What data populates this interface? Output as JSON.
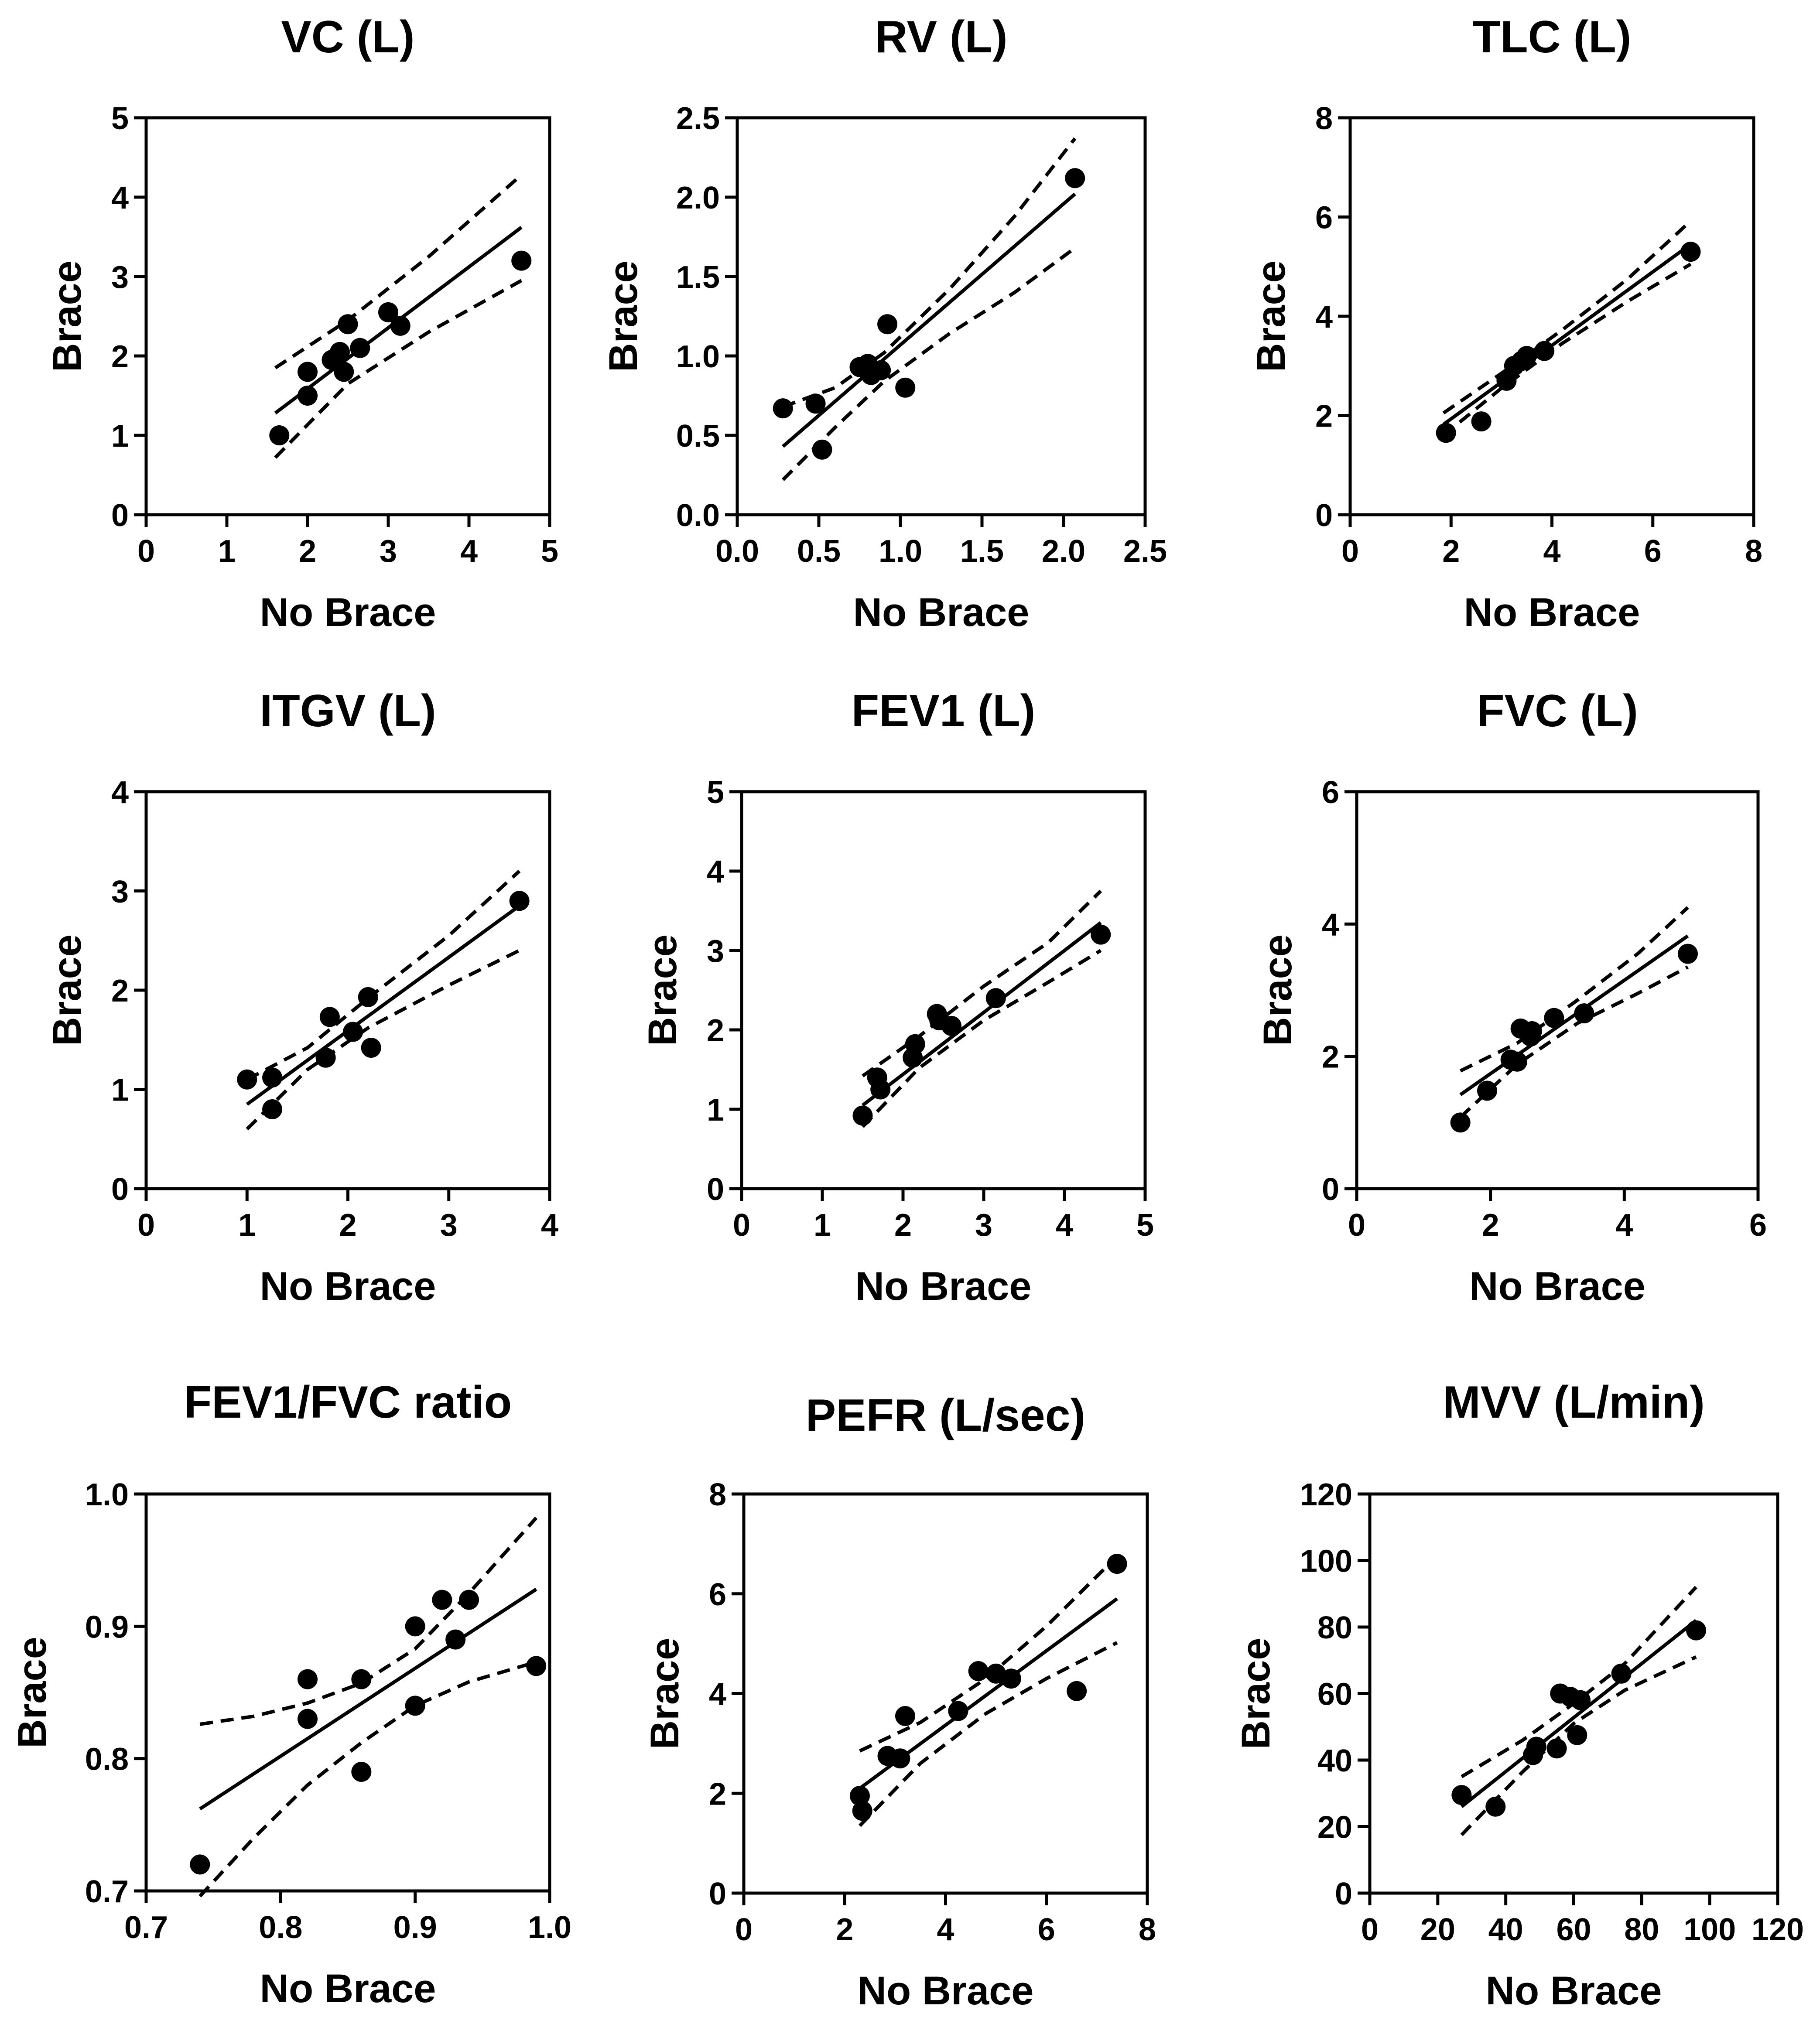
{
  "chart_data": [
    {
      "type": "scatter",
      "title": "VC (L)",
      "xlabel": "No Brace",
      "ylabel": "Brace",
      "xlim": [
        0,
        5
      ],
      "ylim": [
        0,
        5
      ],
      "xticks": [
        "0",
        "1",
        "2",
        "3",
        "4",
        "5"
      ],
      "yticks": [
        "0",
        "1",
        "2",
        "3",
        "4",
        "5"
      ],
      "points": [
        [
          1.65,
          1.0
        ],
        [
          2.0,
          1.5
        ],
        [
          2.0,
          1.8
        ],
        [
          2.3,
          1.95
        ],
        [
          2.4,
          2.05
        ],
        [
          2.45,
          1.8
        ],
        [
          2.5,
          2.4
        ],
        [
          2.65,
          2.1
        ],
        [
          3.0,
          2.55
        ],
        [
          3.15,
          2.38
        ],
        [
          4.65,
          3.2
        ]
      ],
      "fit_line": [
        [
          1.6,
          1.28
        ],
        [
          4.65,
          3.62
        ]
      ],
      "ci_upper": [
        [
          1.6,
          1.85
        ],
        [
          2.5,
          2.45
        ],
        [
          3.5,
          3.25
        ],
        [
          4.65,
          4.28
        ]
      ],
      "ci_lower": [
        [
          1.6,
          0.72
        ],
        [
          2.5,
          1.65
        ],
        [
          3.5,
          2.3
        ],
        [
          4.65,
          2.95
        ]
      ]
    },
    {
      "type": "scatter",
      "title": "RV (L)",
      "xlabel": "No Brace",
      "ylabel": "Brace",
      "xlim": [
        0,
        2.5
      ],
      "ylim": [
        0,
        2.5
      ],
      "xticks": [
        "0.0",
        "0.5",
        "1.0",
        "1.5",
        "2.0",
        "2.5"
      ],
      "yticks": [
        "0.0",
        "0.5",
        "1.0",
        "1.5",
        "2.0",
        "2.5"
      ],
      "points": [
        [
          0.28,
          0.67
        ],
        [
          0.48,
          0.7
        ],
        [
          0.52,
          0.41
        ],
        [
          0.75,
          0.93
        ],
        [
          0.8,
          0.95
        ],
        [
          0.82,
          0.88
        ],
        [
          0.88,
          0.91
        ],
        [
          0.92,
          1.2
        ],
        [
          1.03,
          0.8
        ],
        [
          2.07,
          2.12
        ]
      ],
      "fit_line": [
        [
          0.28,
          0.43
        ],
        [
          2.07,
          2.02
        ]
      ],
      "ci_upper": [
        [
          0.28,
          0.68
        ],
        [
          0.6,
          0.8
        ],
        [
          0.9,
          1.02
        ],
        [
          1.3,
          1.42
        ],
        [
          1.7,
          1.88
        ],
        [
          2.07,
          2.37
        ]
      ],
      "ci_lower": [
        [
          0.28,
          0.22
        ],
        [
          0.6,
          0.55
        ],
        [
          0.9,
          0.84
        ],
        [
          1.3,
          1.14
        ],
        [
          1.7,
          1.4
        ],
        [
          2.07,
          1.68
        ]
      ]
    },
    {
      "type": "scatter",
      "title": "TLC (L)",
      "xlabel": "No Brace",
      "ylabel": "Brace",
      "xlim": [
        0,
        8
      ],
      "ylim": [
        0,
        8
      ],
      "xticks": [
        "0",
        "2",
        "4",
        "6",
        "8"
      ],
      "yticks": [
        "0",
        "2",
        "4",
        "6",
        "8"
      ],
      "points": [
        [
          1.9,
          1.65
        ],
        [
          2.6,
          1.88
        ],
        [
          3.1,
          2.7
        ],
        [
          3.25,
          3.0
        ],
        [
          3.4,
          3.1
        ],
        [
          3.5,
          3.2
        ],
        [
          3.85,
          3.3
        ],
        [
          6.75,
          5.3
        ]
      ],
      "fit_line": [
        [
          1.85,
          1.82
        ],
        [
          6.75,
          5.45
        ]
      ],
      "ci_upper": [
        [
          1.85,
          2.05
        ],
        [
          3.0,
          2.85
        ],
        [
          4.2,
          3.72
        ],
        [
          5.5,
          4.75
        ],
        [
          6.75,
          5.92
        ]
      ],
      "ci_lower": [
        [
          1.85,
          1.6
        ],
        [
          3.0,
          2.55
        ],
        [
          4.2,
          3.45
        ],
        [
          5.5,
          4.3
        ],
        [
          6.75,
          5.05
        ]
      ]
    },
    {
      "type": "scatter",
      "title": "ITGV (L)",
      "xlabel": "No Brace",
      "ylabel": "Brace",
      "xlim": [
        0,
        4
      ],
      "ylim": [
        0,
        4
      ],
      "xticks": [
        "0",
        "1",
        "2",
        "3",
        "4"
      ],
      "yticks": [
        "0",
        "1",
        "2",
        "3",
        "4"
      ],
      "points": [
        [
          1.0,
          1.1
        ],
        [
          1.25,
          1.12
        ],
        [
          1.25,
          0.8
        ],
        [
          1.78,
          1.32
        ],
        [
          1.82,
          1.73
        ],
        [
          2.05,
          1.58
        ],
        [
          2.2,
          1.93
        ],
        [
          2.23,
          1.42
        ],
        [
          3.7,
          2.9
        ]
      ],
      "fit_line": [
        [
          1.0,
          0.85
        ],
        [
          3.7,
          2.85
        ]
      ],
      "ci_upper": [
        [
          1.0,
          1.1
        ],
        [
          1.6,
          1.42
        ],
        [
          2.2,
          1.92
        ],
        [
          3.0,
          2.55
        ],
        [
          3.7,
          3.2
        ]
      ],
      "ci_lower": [
        [
          1.0,
          0.6
        ],
        [
          1.6,
          1.2
        ],
        [
          2.2,
          1.62
        ],
        [
          3.0,
          2.05
        ],
        [
          3.7,
          2.4
        ]
      ]
    },
    {
      "type": "scatter",
      "title": "FEV1 (L)",
      "xlabel": "No Brace",
      "ylabel": "Brace",
      "xlim": [
        0,
        5
      ],
      "ylim": [
        0,
        5
      ],
      "xticks": [
        "0",
        "1",
        "2",
        "3",
        "4",
        "5"
      ],
      "yticks": [
        "0",
        "1",
        "2",
        "3",
        "4",
        "5"
      ],
      "points": [
        [
          1.5,
          0.92
        ],
        [
          1.68,
          1.4
        ],
        [
          1.72,
          1.25
        ],
        [
          2.12,
          1.65
        ],
        [
          2.15,
          1.82
        ],
        [
          2.42,
          2.2
        ],
        [
          2.45,
          2.12
        ],
        [
          2.6,
          2.05
        ],
        [
          3.15,
          2.4
        ],
        [
          4.45,
          3.2
        ]
      ],
      "fit_line": [
        [
          1.5,
          1.05
        ],
        [
          4.45,
          3.35
        ]
      ],
      "ci_upper": [
        [
          1.5,
          1.42
        ],
        [
          2.2,
          1.92
        ],
        [
          3.0,
          2.55
        ],
        [
          3.8,
          3.1
        ],
        [
          4.45,
          3.75
        ]
      ],
      "ci_lower": [
        [
          1.5,
          0.78
        ],
        [
          2.2,
          1.52
        ],
        [
          3.0,
          2.12
        ],
        [
          3.8,
          2.6
        ],
        [
          4.45,
          3.0
        ]
      ]
    },
    {
      "type": "scatter",
      "title": "FVC (L)",
      "xlabel": "No Brace",
      "ylabel": "Brace",
      "xlim": [
        0,
        6
      ],
      "ylim": [
        0,
        6
      ],
      "xticks": [
        "0",
        "2",
        "4",
        "6"
      ],
      "yticks": [
        "0",
        "2",
        "4",
        "6"
      ],
      "points": [
        [
          1.55,
          1.0
        ],
        [
          1.95,
          1.48
        ],
        [
          2.3,
          1.95
        ],
        [
          2.4,
          1.92
        ],
        [
          2.45,
          2.42
        ],
        [
          2.6,
          2.3
        ],
        [
          2.62,
          2.38
        ],
        [
          2.95,
          2.58
        ],
        [
          3.4,
          2.65
        ],
        [
          4.95,
          3.55
        ]
      ],
      "fit_line": [
        [
          1.55,
          1.42
        ],
        [
          4.95,
          3.82
        ]
      ],
      "ci_upper": [
        [
          1.55,
          1.78
        ],
        [
          2.4,
          2.2
        ],
        [
          3.3,
          2.85
        ],
        [
          4.2,
          3.55
        ],
        [
          4.95,
          4.25
        ]
      ],
      "ci_lower": [
        [
          1.55,
          1.08
        ],
        [
          2.4,
          1.88
        ],
        [
          3.3,
          2.5
        ],
        [
          4.2,
          2.95
        ],
        [
          4.95,
          3.35
        ]
      ]
    },
    {
      "type": "scatter",
      "title": "FEV1/FVC ratio",
      "xlabel": "No Brace",
      "ylabel": "Brace",
      "xlim": [
        0.7,
        1.0
      ],
      "ylim": [
        0.7,
        1.0
      ],
      "xticks": [
        "0.7",
        "0.8",
        "0.9",
        "1.0"
      ],
      "yticks": [
        "0.7",
        "0.8",
        "0.9",
        "1.0"
      ],
      "points": [
        [
          0.74,
          0.72
        ],
        [
          0.82,
          0.86
        ],
        [
          0.82,
          0.83
        ],
        [
          0.86,
          0.86
        ],
        [
          0.86,
          0.79
        ],
        [
          0.9,
          0.9
        ],
        [
          0.9,
          0.84
        ],
        [
          0.92,
          0.92
        ],
        [
          0.93,
          0.89
        ],
        [
          0.94,
          0.92
        ],
        [
          0.99,
          0.87
        ]
      ],
      "fit_line": [
        [
          0.74,
          0.762
        ],
        [
          0.99,
          0.928
        ]
      ],
      "ci_upper": [
        [
          0.74,
          0.826
        ],
        [
          0.78,
          0.832
        ],
        [
          0.82,
          0.842
        ],
        [
          0.86,
          0.857
        ],
        [
          0.9,
          0.883
        ],
        [
          0.94,
          0.925
        ],
        [
          0.99,
          0.982
        ]
      ],
      "ci_lower": [
        [
          0.74,
          0.696
        ],
        [
          0.78,
          0.74
        ],
        [
          0.82,
          0.78
        ],
        [
          0.86,
          0.812
        ],
        [
          0.9,
          0.84
        ],
        [
          0.94,
          0.858
        ],
        [
          0.99,
          0.873
        ]
      ]
    },
    {
      "type": "scatter",
      "title": "PEFR (L/sec)",
      "xlabel": "No Brace",
      "ylabel": "Brace",
      "xlim": [
        0,
        8
      ],
      "ylim": [
        0,
        8
      ],
      "xticks": [
        "0",
        "2",
        "4",
        "6",
        "8"
      ],
      "yticks": [
        "0",
        "2",
        "4",
        "6",
        "8"
      ],
      "points": [
        [
          2.3,
          1.95
        ],
        [
          2.35,
          1.65
        ],
        [
          2.85,
          2.75
        ],
        [
          3.1,
          2.7
        ],
        [
          3.2,
          3.55
        ],
        [
          4.25,
          3.65
        ],
        [
          4.65,
          4.45
        ],
        [
          5.0,
          4.4
        ],
        [
          5.3,
          4.3
        ],
        [
          6.6,
          4.05
        ],
        [
          7.4,
          6.6
        ]
      ],
      "fit_line": [
        [
          2.3,
          2.1
        ],
        [
          7.4,
          5.9
        ]
      ],
      "ci_upper": [
        [
          2.3,
          2.85
        ],
        [
          3.5,
          3.42
        ],
        [
          4.8,
          4.3
        ],
        [
          6.0,
          5.35
        ],
        [
          7.4,
          6.75
        ]
      ],
      "ci_lower": [
        [
          2.3,
          1.35
        ],
        [
          3.5,
          2.6
        ],
        [
          4.8,
          3.6
        ],
        [
          6.0,
          4.3
        ],
        [
          7.4,
          5.02
        ]
      ]
    },
    {
      "type": "scatter",
      "title": "MVV (L/min)",
      "xlabel": "No Brace",
      "ylabel": "Brace",
      "xlim": [
        0,
        120
      ],
      "ylim": [
        0,
        120
      ],
      "xticks": [
        "0",
        "20",
        "40",
        "60",
        "80",
        "100",
        "120"
      ],
      "yticks": [
        "0",
        "20",
        "40",
        "60",
        "80",
        "100",
        "120"
      ],
      "points": [
        [
          27,
          29.5
        ],
        [
          37,
          26
        ],
        [
          48,
          41.5
        ],
        [
          49,
          44
        ],
        [
          55,
          43.5
        ],
        [
          56,
          60
        ],
        [
          59,
          59
        ],
        [
          61,
          47.5
        ],
        [
          62,
          58
        ],
        [
          74,
          66
        ],
        [
          96,
          79
        ]
      ],
      "fit_line": [
        [
          27,
          26
        ],
        [
          96,
          82
        ]
      ],
      "ci_upper": [
        [
          27,
          35
        ],
        [
          45,
          46
        ],
        [
          60,
          57
        ],
        [
          75,
          69
        ],
        [
          96,
          92
        ]
      ],
      "ci_lower": [
        [
          27,
          17.5
        ],
        [
          45,
          36.5
        ],
        [
          60,
          51
        ],
        [
          75,
          61
        ],
        [
          96,
          71
        ]
      ]
    }
  ]
}
